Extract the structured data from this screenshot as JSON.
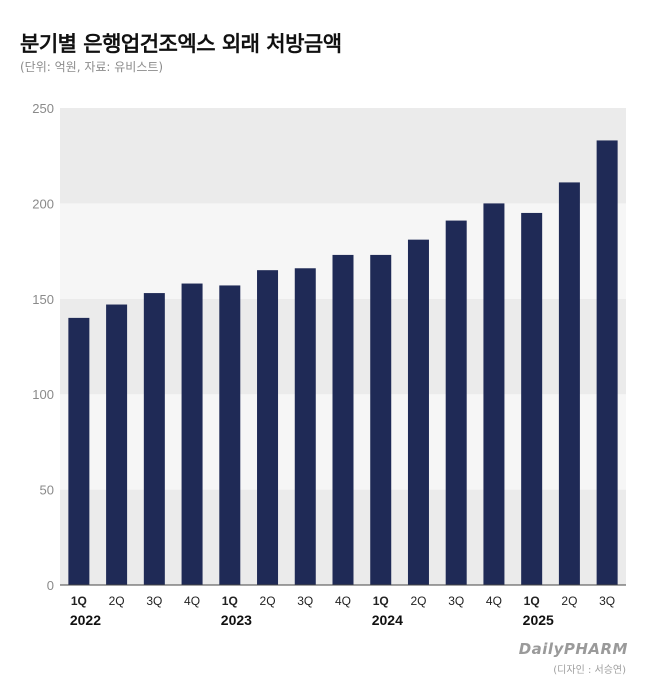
{
  "header": {
    "title": "분기별 은행업건조엑스 외래 처방금액",
    "subtitle": "(단위: 억원, 자료: 유비스트)"
  },
  "footer": {
    "brand": "DailyPHARM",
    "credit": "(디자인 : 서승연)"
  },
  "colors": {
    "bar": "#1f2a56",
    "band_dark": "#ebebeb",
    "band_light": "#f6f6f6",
    "axis": "#444444"
  },
  "chart_data": {
    "type": "bar",
    "title": "분기별 은행업건조엑스 외래 처방금액",
    "subtitle": "(단위: 억원, 자료: 유비스트)",
    "xlabel": "",
    "ylabel": "",
    "ylim": [
      0,
      250
    ],
    "yticks": [
      "0",
      "50",
      "100",
      "150",
      "200",
      "250"
    ],
    "grid": "alternating horizontal bands",
    "categories": [
      "1Q",
      "2Q",
      "3Q",
      "4Q",
      "1Q",
      "2Q",
      "3Q",
      "4Q",
      "1Q",
      "2Q",
      "3Q",
      "4Q",
      "1Q",
      "2Q",
      "3Q"
    ],
    "years": [
      {
        "label": "2022",
        "start": 0
      },
      {
        "label": "2023",
        "start": 4
      },
      {
        "label": "2024",
        "start": 8
      },
      {
        "label": "2025",
        "start": 12
      }
    ],
    "values": [
      140,
      147,
      153,
      158,
      157,
      165,
      166,
      173,
      173,
      181,
      191,
      200,
      195,
      211,
      233
    ]
  }
}
